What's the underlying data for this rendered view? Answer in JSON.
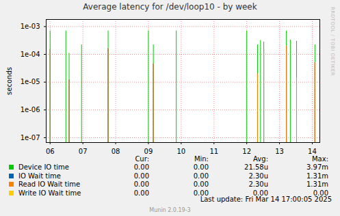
{
  "chart_data": {
    "type": "line",
    "title": "Average latency for /dev/loop10 - by week",
    "y_label": "seconds",
    "log": "y",
    "grid": true,
    "x": [
      6.0,
      6.48,
      6.58,
      6.96,
      7.77,
      9.0,
      9.15,
      9.85,
      12.0,
      12.33,
      12.42,
      12.52,
      13.21,
      13.33,
      13.52,
      14.08
    ],
    "xlim": [
      5.88,
      14.23
    ],
    "xticks": [
      {
        "value": 6,
        "label": "06"
      },
      {
        "value": 7,
        "label": "07"
      },
      {
        "value": 8,
        "label": "08"
      },
      {
        "value": 9,
        "label": "09"
      },
      {
        "value": 10,
        "label": "10"
      },
      {
        "value": 11,
        "label": "11"
      },
      {
        "value": 12,
        "label": "12"
      },
      {
        "value": 13,
        "label": "13"
      },
      {
        "value": 14,
        "label": "14"
      }
    ],
    "ylim": [
      6.7e-08,
      0.0018
    ],
    "yticks": [
      {
        "value": 1e-07,
        "label": "1e-07"
      },
      {
        "value": 1e-06,
        "label": "1e-06"
      },
      {
        "value": 1e-05,
        "label": "1e-05"
      },
      {
        "value": 0.0001,
        "label": "1e-04"
      },
      {
        "value": 0.001,
        "label": "1e-03"
      }
    ],
    "stats_columns": [
      "Cur:",
      "Min:",
      "Avg:",
      "Max:"
    ],
    "series": [
      {
        "name": "Device IO time",
        "color": "#00cc00",
        "stats": [
          "0.00",
          "0.00",
          "21.58u",
          "3.97m"
        ],
        "values": [
          0.0007,
          0.0007,
          0.00011,
          0.00022,
          0.0007,
          0.0007,
          0.00022,
          0.0007,
          0.0007,
          0.00022,
          0.00032,
          0.00028,
          0.0007,
          0.00033,
          0.0003,
          0.00022
        ]
      },
      {
        "name": "IO Wait time",
        "color": "#0066b3",
        "stats": [
          "0.00",
          "0.00",
          "2.30u",
          "1.31m"
        ],
        "values": [
          0.00015,
          null,
          1.2e-05,
          null,
          0.00016,
          null,
          4.5e-05,
          null,
          null,
          2e-05,
          null,
          0.00015,
          0.0002,
          null,
          1.5e-05,
          5e-05
        ]
      },
      {
        "name": "Read IO Wait time",
        "color": "#ff8000",
        "stats": [
          "0.00",
          "0.00",
          "2.30u",
          "1.31m"
        ],
        "values": [
          0.00015,
          null,
          1.2e-05,
          null,
          0.00016,
          null,
          4.5e-05,
          null,
          null,
          2e-05,
          null,
          0.00015,
          0.0002,
          null,
          1.5e-05,
          5e-05
        ]
      },
      {
        "name": "Write IO Wait time",
        "color": "#ffcc00",
        "stats": [
          "0.00",
          "0.00",
          "0.00",
          "0.00"
        ],
        "values": [
          null,
          null,
          null,
          null,
          null,
          null,
          null,
          null,
          null,
          null,
          null,
          null,
          null,
          null,
          null,
          null
        ]
      }
    ],
    "footer": "Last update: Fri Mar 14 17:00:05 2025",
    "credit": "Munin 2.0.19-3",
    "side_text": "RRDTOOL / TOBI OETIKER"
  }
}
